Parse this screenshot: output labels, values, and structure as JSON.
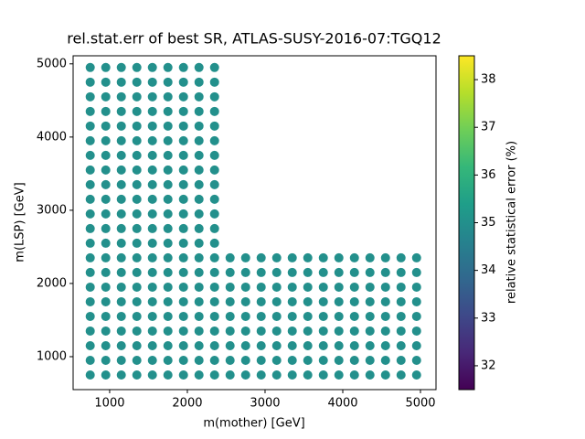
{
  "chart_data": {
    "type": "scatter",
    "title": "rel.stat.err of best SR, ATLAS-SUSY-2016-07:TGQ12",
    "x_label": "m(mother) [GeV]",
    "y_label": "m(LSP) [GeV]",
    "colorbar_label": "relative statistical error (%)",
    "colormap": "viridis",
    "xlim": [
      530,
      5200
    ],
    "ylim": [
      550,
      5110
    ],
    "xticks": [
      1000,
      2000,
      3000,
      4000,
      5000
    ],
    "yticks": [
      1000,
      2000,
      3000,
      4000,
      5000
    ],
    "clim": [
      31.5,
      38.5
    ],
    "cticks": [
      32,
      33,
      34,
      35,
      36,
      37,
      38
    ],
    "x": [
      750,
      750,
      750,
      750,
      750,
      750,
      750,
      750,
      750,
      750,
      750,
      750,
      750,
      750,
      750,
      750,
      750,
      750,
      750,
      750,
      750,
      750,
      950,
      950,
      950,
      950,
      950,
      950,
      950,
      950,
      950,
      950,
      950,
      950,
      950,
      950,
      950,
      950,
      950,
      950,
      950,
      950,
      950,
      950,
      1150,
      1150,
      1150,
      1150,
      1150,
      1150,
      1150,
      1150,
      1150,
      1150,
      1150,
      1150,
      1150,
      1150,
      1150,
      1150,
      1150,
      1150,
      1150,
      1150,
      1150,
      1150,
      1350,
      1350,
      1350,
      1350,
      1350,
      1350,
      1350,
      1350,
      1350,
      1350,
      1350,
      1350,
      1350,
      1350,
      1350,
      1350,
      1350,
      1350,
      1350,
      1350,
      1350,
      1350,
      1550,
      1550,
      1550,
      1550,
      1550,
      1550,
      1550,
      1550,
      1550,
      1550,
      1550,
      1550,
      1550,
      1550,
      1550,
      1550,
      1550,
      1550,
      1550,
      1550,
      1550,
      1550,
      1750,
      1750,
      1750,
      1750,
      1750,
      1750,
      1750,
      1750,
      1750,
      1750,
      1750,
      1750,
      1750,
      1750,
      1750,
      1750,
      1750,
      1750,
      1750,
      1750,
      1750,
      1750,
      1950,
      1950,
      1950,
      1950,
      1950,
      1950,
      1950,
      1950,
      1950,
      1950,
      1950,
      1950,
      1950,
      1950,
      1950,
      1950,
      1950,
      1950,
      1950,
      1950,
      1950,
      1950,
      2150,
      2150,
      2150,
      2150,
      2150,
      2150,
      2150,
      2150,
      2150,
      2150,
      2150,
      2150,
      2150,
      2150,
      2150,
      2150,
      2150,
      2150,
      2150,
      2150,
      2150,
      2150,
      2350,
      2350,
      2350,
      2350,
      2350,
      2350,
      2350,
      2350,
      2350,
      2350,
      2350,
      2350,
      2350,
      2350,
      2350,
      2350,
      2350,
      2350,
      2350,
      2350,
      2350,
      2350,
      2550,
      2550,
      2550,
      2550,
      2550,
      2550,
      2550,
      2550,
      2550,
      2750,
      2750,
      2750,
      2750,
      2750,
      2750,
      2750,
      2750,
      2750,
      2950,
      2950,
      2950,
      2950,
      2950,
      2950,
      2950,
      2950,
      2950,
      3150,
      3150,
      3150,
      3150,
      3150,
      3150,
      3150,
      3150,
      3150,
      3350,
      3350,
      3350,
      3350,
      3350,
      3350,
      3350,
      3350,
      3350,
      3550,
      3550,
      3550,
      3550,
      3550,
      3550,
      3550,
      3550,
      3550,
      3750,
      3750,
      3750,
      3750,
      3750,
      3750,
      3750,
      3750,
      3750,
      3950,
      3950,
      3950,
      3950,
      3950,
      3950,
      3950,
      3950,
      3950,
      4150,
      4150,
      4150,
      4150,
      4150,
      4150,
      4150,
      4150,
      4150,
      4350,
      4350,
      4350,
      4350,
      4350,
      4350,
      4350,
      4350,
      4350,
      4550,
      4550,
      4550,
      4550,
      4550,
      4550,
      4550,
      4550,
      4550,
      4750,
      4750,
      4750,
      4750,
      4750,
      4750,
      4750,
      4750,
      4750,
      4950,
      4950,
      4950,
      4950,
      4950,
      4950,
      4950,
      4950,
      4950
    ],
    "y": [
      750,
      950,
      1150,
      1350,
      1550,
      1750,
      1950,
      2150,
      2350,
      2550,
      2750,
      2950,
      3150,
      3350,
      3550,
      3750,
      3950,
      4150,
      4350,
      4550,
      4750,
      4950,
      750,
      950,
      1150,
      1350,
      1550,
      1750,
      1950,
      2150,
      2350,
      2550,
      2750,
      2950,
      3150,
      3350,
      3550,
      3750,
      3950,
      4150,
      4350,
      4550,
      4750,
      4950,
      750,
      950,
      1150,
      1350,
      1550,
      1750,
      1950,
      2150,
      2350,
      2550,
      2750,
      2950,
      3150,
      3350,
      3550,
      3750,
      3950,
      4150,
      4350,
      4550,
      4750,
      4950,
      750,
      950,
      1150,
      1350,
      1550,
      1750,
      1950,
      2150,
      2350,
      2550,
      2750,
      2950,
      3150,
      3350,
      3550,
      3750,
      3950,
      4150,
      4350,
      4550,
      4750,
      4950,
      750,
      950,
      1150,
      1350,
      1550,
      1750,
      1950,
      2150,
      2350,
      2550,
      2750,
      2950,
      3150,
      3350,
      3550,
      3750,
      3950,
      4150,
      4350,
      4550,
      4750,
      4950,
      750,
      950,
      1150,
      1350,
      1550,
      1750,
      1950,
      2150,
      2350,
      2550,
      2750,
      2950,
      3150,
      3350,
      3550,
      3750,
      3950,
      4150,
      4350,
      4550,
      4750,
      4950,
      750,
      950,
      1150,
      1350,
      1550,
      1750,
      1950,
      2150,
      2350,
      2550,
      2750,
      2950,
      3150,
      3350,
      3550,
      3750,
      3950,
      4150,
      4350,
      4550,
      4750,
      4950,
      750,
      950,
      1150,
      1350,
      1550,
      1750,
      1950,
      2150,
      2350,
      2550,
      2750,
      2950,
      3150,
      3350,
      3550,
      3750,
      3950,
      4150,
      4350,
      4550,
      4750,
      4950,
      750,
      950,
      1150,
      1350,
      1550,
      1750,
      1950,
      2150,
      2350,
      2550,
      2750,
      2950,
      3150,
      3350,
      3550,
      3750,
      3950,
      4150,
      4350,
      4550,
      4750,
      4950,
      750,
      950,
      1150,
      1350,
      1550,
      1750,
      1950,
      2150,
      2350,
      750,
      950,
      1150,
      1350,
      1550,
      1750,
      1950,
      2150,
      2350,
      750,
      950,
      1150,
      1350,
      1550,
      1750,
      1950,
      2150,
      2350,
      750,
      950,
      1150,
      1350,
      1550,
      1750,
      1950,
      2150,
      2350,
      750,
      950,
      1150,
      1350,
      1550,
      1750,
      1950,
      2150,
      2350,
      750,
      950,
      1150,
      1350,
      1550,
      1750,
      1950,
      2150,
      2350,
      750,
      950,
      1150,
      1350,
      1550,
      1750,
      1950,
      2150,
      2350,
      750,
      950,
      1150,
      1350,
      1550,
      1750,
      1950,
      2150,
      2350,
      750,
      950,
      1150,
      1350,
      1550,
      1750,
      1950,
      2150,
      2350,
      750,
      950,
      1150,
      1350,
      1550,
      1750,
      1950,
      2150,
      2350,
      750,
      950,
      1150,
      1350,
      1550,
      1750,
      1950,
      2150,
      2350,
      750,
      950,
      1150,
      1350,
      1550,
      1750,
      1950,
      2150,
      2350,
      750,
      950,
      1150,
      1350,
      1550,
      1750,
      1950,
      2150,
      2350
    ],
    "values": [
      35,
      35,
      35,
      35,
      35,
      35,
      35,
      35,
      35,
      35,
      35,
      35,
      35,
      35,
      35,
      35,
      35,
      35,
      35,
      35,
      35,
      35,
      35,
      35,
      35,
      35,
      35,
      35,
      35,
      35,
      35,
      35,
      35,
      35,
      35,
      35,
      35,
      35,
      35,
      35,
      35,
      35,
      35,
      35,
      35,
      35,
      35,
      35,
      35,
      35,
      35,
      35,
      35,
      35,
      35,
      35,
      35,
      35,
      35,
      35,
      35,
      35,
      35,
      35,
      35,
      35,
      35,
      35,
      35,
      35,
      35,
      35,
      35,
      35,
      35,
      35,
      35,
      35,
      35,
      35,
      35,
      35,
      35,
      35,
      35,
      35,
      35,
      35,
      35,
      35,
      35,
      35,
      35,
      35,
      35,
      35,
      35,
      35,
      35,
      35,
      35,
      35,
      35,
      35,
      35,
      35,
      35,
      35,
      35,
      35,
      35,
      35,
      35,
      35,
      35,
      35,
      35,
      35,
      35,
      35,
      35,
      35,
      35,
      35,
      35,
      35,
      35,
      35,
      35,
      35,
      35,
      35,
      35,
      35,
      35,
      35,
      35,
      35,
      35,
      35,
      35,
      35,
      35,
      35,
      35,
      35,
      35,
      35,
      35,
      35,
      35,
      35,
      35,
      35,
      35,
      35,
      35,
      35,
      35,
      35,
      35,
      35,
      35,
      35,
      35,
      35,
      35,
      35,
      35,
      35,
      35,
      35,
      35,
      35,
      35,
      35,
      35,
      35,
      35,
      35,
      35,
      35,
      35,
      35,
      35,
      35,
      35,
      35,
      35,
      35,
      35,
      35,
      35,
      35,
      35,
      35,
      35,
      35,
      35,
      35,
      35,
      35,
      35,
      35,
      35,
      35,
      35,
      35,
      35,
      35,
      35,
      35,
      35,
      35,
      35,
      35,
      35,
      35,
      35,
      35,
      35,
      35,
      35,
      35,
      35,
      35,
      35,
      35,
      35,
      35,
      35,
      35,
      35,
      35,
      35,
      35,
      35,
      35,
      35,
      35,
      35,
      35,
      35,
      35,
      35,
      35,
      35,
      35,
      35,
      35,
      35,
      35,
      35,
      35,
      35,
      35,
      35,
      35,
      35,
      35,
      35,
      35,
      35,
      35,
      35,
      35,
      35,
      35,
      35,
      35,
      35,
      35,
      35,
      35,
      35,
      35,
      35,
      35,
      35,
      35,
      35,
      35,
      35,
      35,
      35,
      35,
      35,
      35,
      35,
      35,
      35,
      35,
      35,
      35,
      35,
      35,
      35,
      35,
      35,
      35,
      35,
      35,
      35,
      35,
      35,
      35,
      35,
      35,
      35,
      35,
      35,
      35,
      35,
      35,
      35
    ]
  }
}
